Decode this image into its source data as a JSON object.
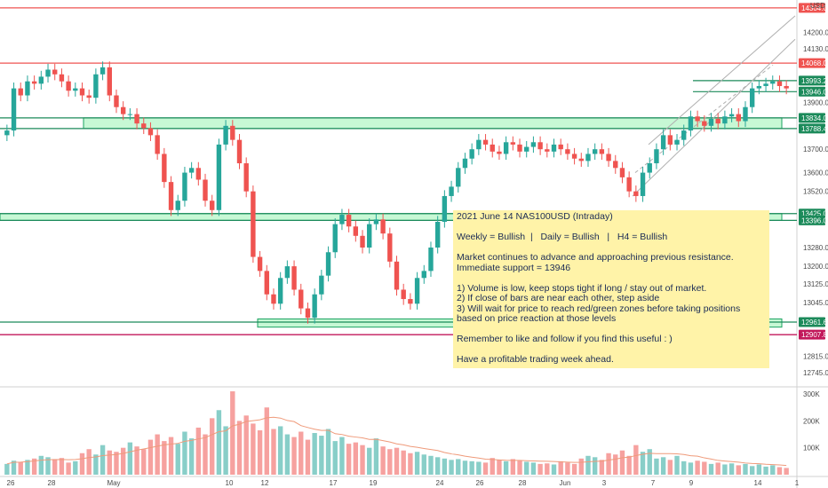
{
  "chart_data": {
    "type": "candlestick",
    "symbol": "NAS100USD",
    "currency_label": "USD",
    "colors": {
      "up": "#26a69a",
      "down": "#ef5350",
      "zone_fill": "#b9f6ca",
      "zone_stroke": "#1aa260",
      "resistance_line": "#ef5350",
      "support_line": "#1b8a5a",
      "magenta": "#c2185b",
      "price_tag_green": "#1b8a5a",
      "price_tag_red": "#ef5350",
      "price_tag_magenta": "#c2185b",
      "channel": "#b0b0b0",
      "volume_ma": "#ef9a7a"
    },
    "y_ticks": [
      "14200.0",
      "14130.0",
      "14068.0",
      "13993.2",
      "13946.0",
      "13900.0",
      "13834.0",
      "13788.4",
      "13700.0",
      "13600.0",
      "13520.0",
      "13425.0",
      "13396.0",
      "13280.0",
      "13200.0",
      "13125.0",
      "13045.0",
      "12961.6",
      "12907.8",
      "12815.0",
      "12745.0"
    ],
    "price_levels": [
      {
        "label": "14304.0",
        "value": 14304.0,
        "style": "red"
      },
      {
        "label": "14068.0",
        "value": 14068.0,
        "style": "red"
      },
      {
        "label": "13993.2",
        "value": 13993.2,
        "style": "green"
      },
      {
        "label": "13946.0",
        "value": 13946.0,
        "style": "green"
      },
      {
        "label": "13834.0",
        "value": 13834.0,
        "style": "green"
      },
      {
        "label": "13788.4",
        "value": 13788.4,
        "style": "green"
      },
      {
        "label": "13425.0",
        "value": 13425.0,
        "style": "green"
      },
      {
        "label": "13396.0",
        "value": 13396.0,
        "style": "green"
      },
      {
        "label": "12961.6",
        "value": 12961.6,
        "style": "green"
      },
      {
        "label": "12907.8",
        "value": 12907.8,
        "style": "magenta"
      }
    ],
    "zones": [
      {
        "from_bar": 94,
        "to_bar": 880,
        "low": 13788.4,
        "high": 13834.0
      },
      {
        "from_bar": 0,
        "to_bar": 880,
        "low": 13396.0,
        "high": 13425.0
      },
      {
        "from_bar": 290,
        "to_bar": 880,
        "low": 12940.0,
        "high": 12975.0
      }
    ],
    "x_labels": [
      "26",
      "28",
      "May",
      "10",
      "12",
      "17",
      "19",
      "24",
      "26",
      "28",
      "Jun",
      "3",
      "7",
      "9",
      "14",
      "1"
    ],
    "volume_ticks": [
      "300K",
      "200K",
      "100K"
    ],
    "price_range": [
      12700,
      14330
    ],
    "volume_range": [
      0,
      320000
    ],
    "closes": [
      13780,
      13960,
      13930,
      13990,
      13980,
      14010,
      14040,
      14020,
      13990,
      13950,
      13960,
      13930,
      13920,
      14020,
      14050,
      13930,
      13880,
      13850,
      13850,
      13810,
      13790,
      13760,
      13680,
      13560,
      13440,
      13480,
      13600,
      13620,
      13570,
      13480,
      13440,
      13720,
      13800,
      13740,
      13640,
      13520,
      13240,
      13180,
      13080,
      13040,
      13150,
      13200,
      13100,
      13020,
      12980,
      13080,
      13160,
      13260,
      13380,
      13420,
      13370,
      13330,
      13280,
      13380,
      13400,
      13340,
      13220,
      13100,
      13060,
      13040,
      13150,
      13180,
      13280,
      13390,
      13500,
      13540,
      13620,
      13660,
      13700,
      13740,
      13720,
      13690,
      13680,
      13730,
      13720,
      13690,
      13710,
      13730,
      13700,
      13690,
      13720,
      13700,
      13680,
      13660,
      13650,
      13680,
      13700,
      13680,
      13650,
      13620,
      13580,
      13520,
      13500,
      13600,
      13640,
      13700,
      13760,
      13720,
      13740,
      13780,
      13840,
      13820,
      13800,
      13830,
      13810,
      13840,
      13850,
      13820,
      13880,
      13960,
      13970,
      13980,
      13990,
      13970,
      13960
    ],
    "volumes": [
      40000,
      52000,
      48000,
      55000,
      60000,
      70000,
      65000,
      58000,
      62000,
      45000,
      50000,
      80000,
      95000,
      75000,
      110000,
      90000,
      85000,
      100000,
      120000,
      105000,
      95000,
      130000,
      150000,
      125000,
      140000,
      115000,
      160000,
      135000,
      175000,
      150000,
      210000,
      240000,
      180000,
      310000,
      200000,
      220000,
      190000,
      165000,
      250000,
      170000,
      180000,
      150000,
      140000,
      160000,
      130000,
      155000,
      145000,
      170000,
      125000,
      140000,
      115000,
      120000,
      110000,
      100000,
      135000,
      105000,
      95000,
      100000,
      90000,
      80000,
      85000,
      75000,
      70000,
      65000,
      60000,
      55000,
      58000,
      52000,
      50000,
      48000,
      45000,
      62000,
      55000,
      50000,
      58000,
      52000,
      48000,
      45000,
      40000,
      42000,
      38000,
      50000,
      45000,
      40000,
      60000,
      70000,
      65000,
      55000,
      80000,
      75000,
      90000,
      70000,
      110000,
      85000,
      95000,
      60000,
      65000,
      55000,
      70000,
      50000,
      45000,
      52000,
      48000,
      40000,
      45000,
      38000,
      42000,
      35000,
      40000,
      32000,
      38000,
      30000,
      35000,
      28000,
      25000
    ]
  },
  "note": {
    "title": "2021 June 14 NAS100USD (Intraday)",
    "bias": "Weekly = Bullish  |   Daily = Bullish   |   H4 = Bullish",
    "summary_1": "Market continues to advance and approaching previous resistance.",
    "summary_2": "Immediate support = 13946",
    "point_1": "1) Volume is low, keep stops tight if long / stay out of market.",
    "point_2": "2) If close of bars are near each other, step aside",
    "point_3": "3) Will wait for price to reach red/green zones before taking positions based on price reaction at those levels",
    "cta": "Remember to like and follow if you find this useful : )",
    "closing": "Have a profitable trading week ahead."
  }
}
